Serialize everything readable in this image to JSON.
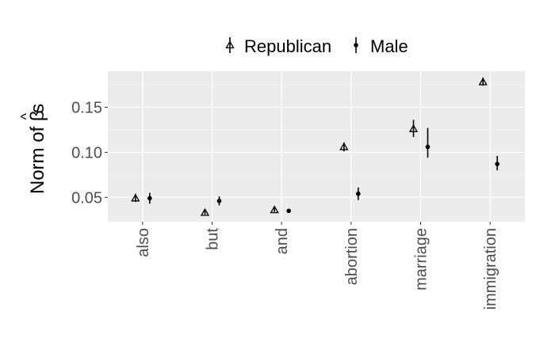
{
  "chart_data": {
    "type": "scatter",
    "subtype": "point-range",
    "categories": [
      "also",
      "but",
      "and",
      "abortion",
      "marriage",
      "immigration"
    ],
    "ylabel": "Norm of β̂s",
    "ylabel_parts": {
      "prefix": "Norm of ",
      "symbol": "β",
      "hat": "^",
      "suffix": "s"
    },
    "xlabel": "",
    "ylim": [
      0.023,
      0.19
    ],
    "y_ticks": [
      0.05,
      0.1,
      0.15
    ],
    "y_tick_labels": [
      "0.05",
      "0.10",
      "0.15"
    ],
    "grid": true,
    "legend_position": "top",
    "series": [
      {
        "name": "Republican",
        "marker": "open-triangle",
        "values": [
          0.049,
          0.033,
          0.036,
          0.106,
          0.126,
          0.178
        ],
        "lower": [
          0.045,
          0.031,
          0.034,
          0.101,
          0.117,
          0.174
        ],
        "upper": [
          0.054,
          0.036,
          0.039,
          0.111,
          0.136,
          0.183
        ]
      },
      {
        "name": "Male",
        "marker": "filled-circle",
        "values": [
          0.049,
          0.046,
          0.035,
          0.054,
          0.106,
          0.087
        ],
        "lower": [
          0.043,
          0.041,
          0.034,
          0.047,
          0.094,
          0.08
        ],
        "upper": [
          0.055,
          0.051,
          0.036,
          0.061,
          0.127,
          0.096
        ]
      }
    ]
  },
  "colors": {
    "panel_background": "#ebebeb",
    "grid_major": "#ffffff",
    "grid_minor": "#f5f5f5",
    "ink": "#000000",
    "tick_text": "#4d4d4d"
  }
}
